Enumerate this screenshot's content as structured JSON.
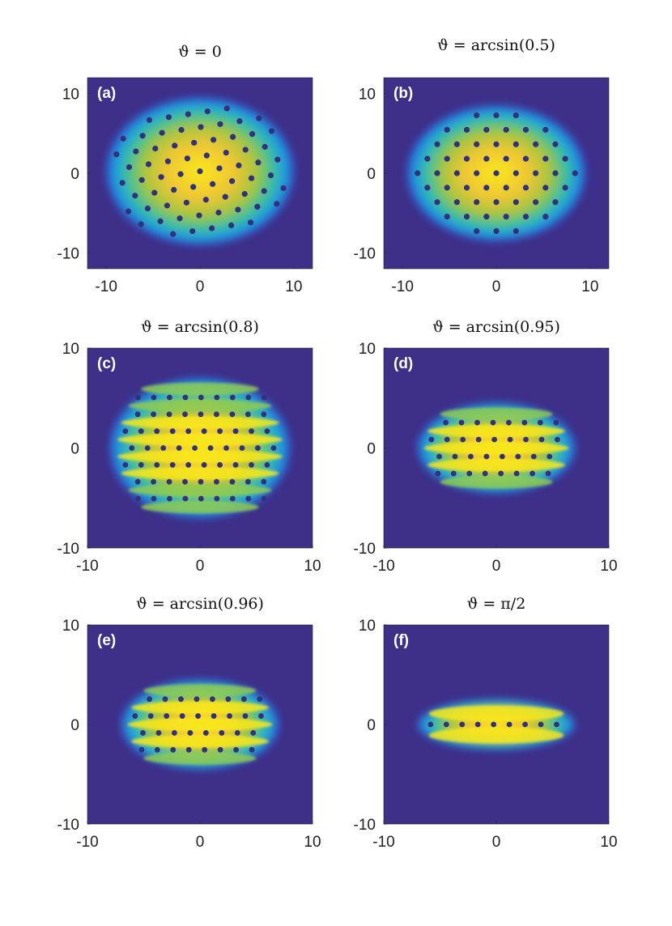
{
  "colors": {
    "background": "#3e2f88",
    "colormap": [
      "#3e2f88",
      "#2c6be0",
      "#1fa6d9",
      "#39c2a0",
      "#a7c740",
      "#f2c530",
      "#f9f614"
    ],
    "panel_tag": "#ffffff",
    "axis_text": "#222222"
  },
  "chart_data": [
    {
      "type": "heatmap",
      "panel": "(a)",
      "title": "ϑ = 0",
      "xlim": [
        -12,
        12
      ],
      "ylim": [
        -12,
        12
      ],
      "xticks": [
        -10,
        0,
        10
      ],
      "yticks": [
        -10,
        0,
        10
      ],
      "xtick_labels": [
        "-10",
        "0",
        "10"
      ],
      "ytick_labels": [
        "-10",
        "0",
        "10"
      ],
      "pattern": "triangular vortex lattice",
      "sin_theta": 0,
      "cloud_extent": {
        "x": [
          -10,
          10
        ],
        "y": [
          -9,
          9.5
        ]
      },
      "vortex_rows": 11,
      "lattice_rotation_deg": 10
    },
    {
      "type": "heatmap",
      "panel": "(b)",
      "title": "ϑ = arcsin(0.5)",
      "xlim": [
        -12,
        12
      ],
      "ylim": [
        -12,
        12
      ],
      "xticks": [
        -10,
        0,
        10
      ],
      "yticks": [
        -10,
        0,
        10
      ],
      "xtick_labels": [
        "-10",
        "0",
        "10"
      ],
      "ytick_labels": [
        "-10",
        "0",
        "10"
      ],
      "pattern": "triangular vortex lattice",
      "sin_theta": 0.5,
      "cloud_extent": {
        "x": [
          -9.5,
          9.5
        ],
        "y": [
          -8.5,
          8.5
        ]
      },
      "vortex_rows": 10,
      "lattice_rotation_deg": 0
    },
    {
      "type": "heatmap",
      "panel": "(c)",
      "title": "ϑ = arcsin(0.8)",
      "xlim": [
        -10,
        10
      ],
      "ylim": [
        -10,
        10
      ],
      "xticks": [
        -10,
        0,
        10
      ],
      "yticks": [
        -10,
        0,
        10
      ],
      "xtick_labels": [
        "-10",
        "0",
        "10"
      ],
      "ytick_labels": [
        "-10",
        "0",
        "10"
      ],
      "pattern": "vortex rows, density stripes",
      "sin_theta": 0.8,
      "cloud_extent": {
        "x": [
          -8,
          8
        ],
        "y": [
          -7,
          7
        ]
      },
      "vortex_rows": 7,
      "lattice_rotation_deg": 0
    },
    {
      "type": "heatmap",
      "panel": "(d)",
      "title": "ϑ = arcsin(0.95)",
      "xlim": [
        -10,
        10
      ],
      "ylim": [
        -10,
        10
      ],
      "xticks": [
        -10,
        0,
        10
      ],
      "yticks": [
        -10,
        0,
        10
      ],
      "xtick_labels": [
        "-10",
        "0",
        "10"
      ],
      "ytick_labels": [
        "-10",
        "0",
        "10"
      ],
      "pattern": "stripes with vortex rows",
      "sin_theta": 0.95,
      "cloud_extent": {
        "x": [
          -7,
          7
        ],
        "y": [
          -4.5,
          4.5
        ]
      },
      "vortex_rows": 4,
      "lattice_rotation_deg": 0
    },
    {
      "type": "heatmap",
      "panel": "(e)",
      "title": "ϑ = arcsin(0.96)",
      "xlim": [
        -10,
        10
      ],
      "ylim": [
        -10,
        10
      ],
      "xticks": [
        -10,
        0,
        10
      ],
      "yticks": [
        -10,
        0,
        10
      ],
      "xtick_labels": [
        "-10",
        "0",
        "10"
      ],
      "ytick_labels": [
        "-10",
        "0",
        "10"
      ],
      "pattern": "stripes with vortex rows",
      "sin_theta": 0.96,
      "cloud_extent": {
        "x": [
          -7,
          7
        ],
        "y": [
          -4.5,
          4.5
        ]
      },
      "vortex_rows": 4,
      "lattice_rotation_deg": 0
    },
    {
      "type": "heatmap",
      "panel": "(f)",
      "title": "ϑ = π/2",
      "xlim": [
        -10,
        10
      ],
      "ylim": [
        -10,
        10
      ],
      "xticks": [
        -10,
        0,
        10
      ],
      "yticks": [
        -10,
        0,
        10
      ],
      "xtick_labels": [
        "-10",
        "0",
        "10"
      ],
      "ytick_labels": [
        "-10",
        "0",
        "10"
      ],
      "pattern": "two stripes with single vortex row",
      "sin_theta": 1,
      "cloud_extent": {
        "x": [
          -7,
          7
        ],
        "y": [
          -2.5,
          2.5
        ]
      },
      "vortex_rows": 1,
      "lattice_rotation_deg": 0
    }
  ]
}
